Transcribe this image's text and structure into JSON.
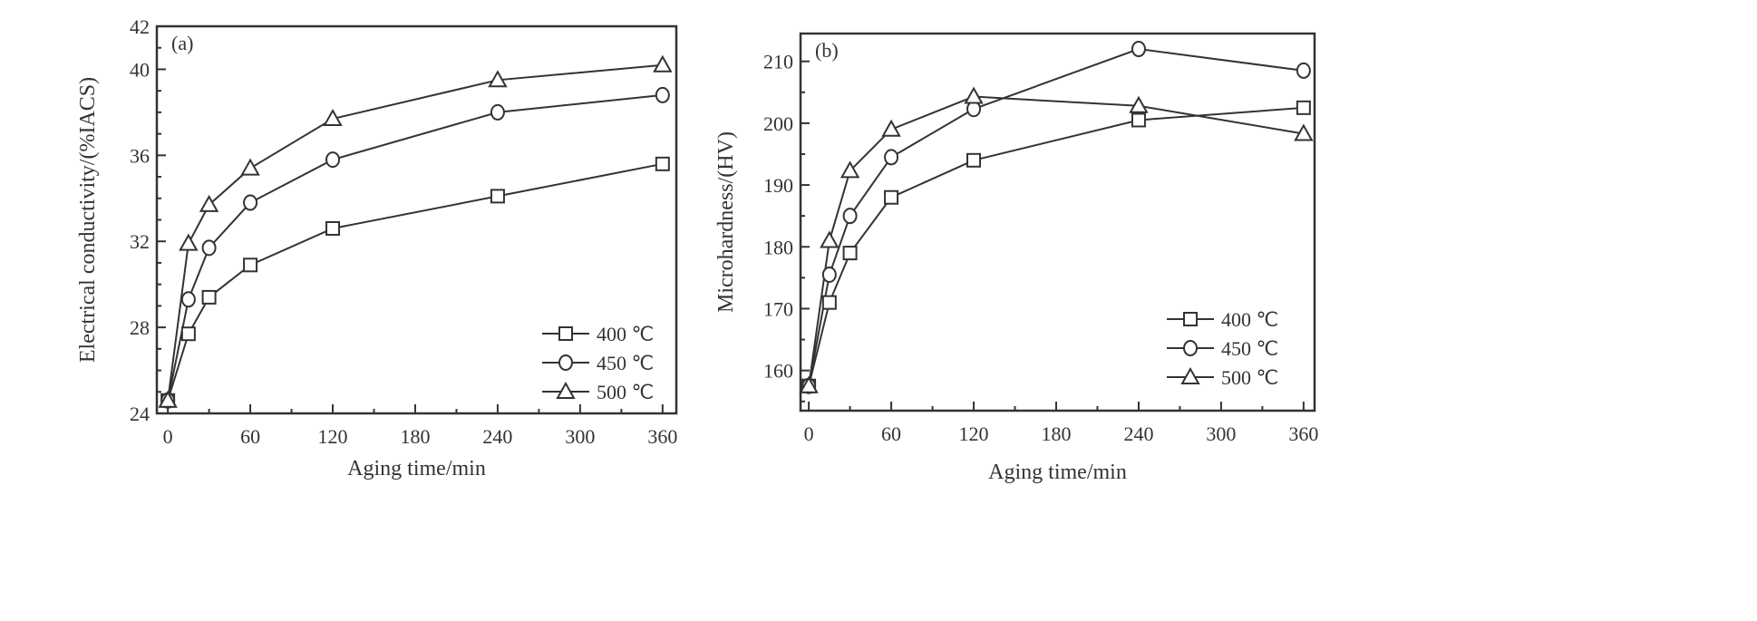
{
  "chart_data": [
    {
      "type": "line",
      "panel_label": "(a)",
      "xlabel": "Aging time/min",
      "ylabel": "Electrical conductivity/(%IACS)",
      "xlim": [
        -8,
        370
      ],
      "ylim": [
        24,
        42
      ],
      "xticks": [
        0,
        60,
        120,
        180,
        240,
        300,
        360
      ],
      "xtick_labels": [
        "0",
        "60",
        "120",
        "180",
        "240",
        "300",
        "360"
      ],
      "yticks": [
        24,
        28,
        32,
        36,
        40,
        42
      ],
      "ytick_labels": [
        "24",
        "28",
        "32",
        "36",
        "40",
        "42"
      ],
      "x_minor_step": 30,
      "y_minor_step": 1,
      "legend_position": "bottom-right",
      "grid": false,
      "x": [
        0,
        15,
        30,
        60,
        120,
        240,
        360
      ],
      "series": [
        {
          "name": "400 ℃",
          "marker": "square",
          "values": [
            24.6,
            27.7,
            29.4,
            30.9,
            32.6,
            34.1,
            35.6
          ]
        },
        {
          "name": "450 ℃",
          "marker": "circle",
          "values": [
            24.6,
            29.3,
            31.7,
            33.8,
            35.8,
            38.0,
            38.8
          ]
        },
        {
          "name": "500 ℃",
          "marker": "triangle",
          "values": [
            24.6,
            31.9,
            33.7,
            35.4,
            37.7,
            39.5,
            40.2
          ]
        }
      ]
    },
    {
      "type": "line",
      "panel_label": "(b)",
      "xlabel": "Aging time/min",
      "ylabel": "Microhardness/(HV)",
      "xlim": [
        -6,
        368
      ],
      "ylim": [
        153.5,
        214.5
      ],
      "xticks": [
        0,
        60,
        120,
        180,
        240,
        300,
        360
      ],
      "xtick_labels": [
        "0",
        "60",
        "120",
        "180",
        "240",
        "300",
        "360"
      ],
      "yticks": [
        160,
        170,
        180,
        190,
        200,
        210
      ],
      "ytick_labels": [
        "160",
        "170",
        "180",
        "190",
        "200",
        "210"
      ],
      "x_minor_step": 30,
      "y_minor_step": 5,
      "legend_position": "bottom-right",
      "grid": false,
      "x": [
        0,
        15,
        30,
        60,
        120,
        240,
        360
      ],
      "series": [
        {
          "name": "400 ℃",
          "marker": "square",
          "values": [
            157.5,
            171.0,
            179.0,
            188.0,
            194.0,
            200.5,
            202.5
          ]
        },
        {
          "name": "450 ℃",
          "marker": "circle",
          "values": [
            157.5,
            175.5,
            185.0,
            194.5,
            202.3,
            212.0,
            208.5
          ]
        },
        {
          "name": "500 ℃",
          "marker": "triangle",
          "values": [
            157.5,
            181.0,
            192.3,
            199.0,
            204.3,
            202.8,
            198.3
          ]
        }
      ]
    }
  ],
  "colors": {
    "ink": "#333333",
    "background": "#ffffff"
  }
}
